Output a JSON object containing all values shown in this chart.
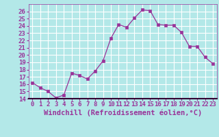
{
  "x": [
    0,
    1,
    2,
    3,
    4,
    5,
    6,
    7,
    8,
    9,
    10,
    11,
    12,
    13,
    14,
    15,
    16,
    17,
    18,
    19,
    20,
    21,
    22,
    23
  ],
  "y": [
    16.2,
    15.5,
    15.0,
    14.1,
    14.5,
    17.5,
    17.2,
    16.7,
    17.8,
    19.2,
    22.3,
    24.2,
    23.8,
    25.1,
    26.2,
    26.1,
    24.2,
    24.1,
    24.1,
    23.1,
    21.2,
    21.2,
    19.7,
    18.8
  ],
  "line_color": "#993399",
  "marker": "s",
  "marker_size": 2.5,
  "bg_color": "#b3e8e8",
  "grid_color": "#ffffff",
  "xlabel": "Windchill (Refroidissement éolien,°C)",
  "xlabel_fontsize": 7.5,
  "tick_fontsize": 6.5,
  "ylim": [
    14,
    27
  ],
  "xlim": [
    -0.5,
    23.5
  ],
  "yticks": [
    14,
    15,
    16,
    17,
    18,
    19,
    20,
    21,
    22,
    23,
    24,
    25,
    26
  ],
  "xticks": [
    0,
    1,
    2,
    3,
    4,
    5,
    6,
    7,
    8,
    9,
    10,
    11,
    12,
    13,
    14,
    15,
    16,
    17,
    18,
    19,
    20,
    21,
    22,
    23
  ],
  "text_color": "#993399",
  "spine_color": "#993399"
}
